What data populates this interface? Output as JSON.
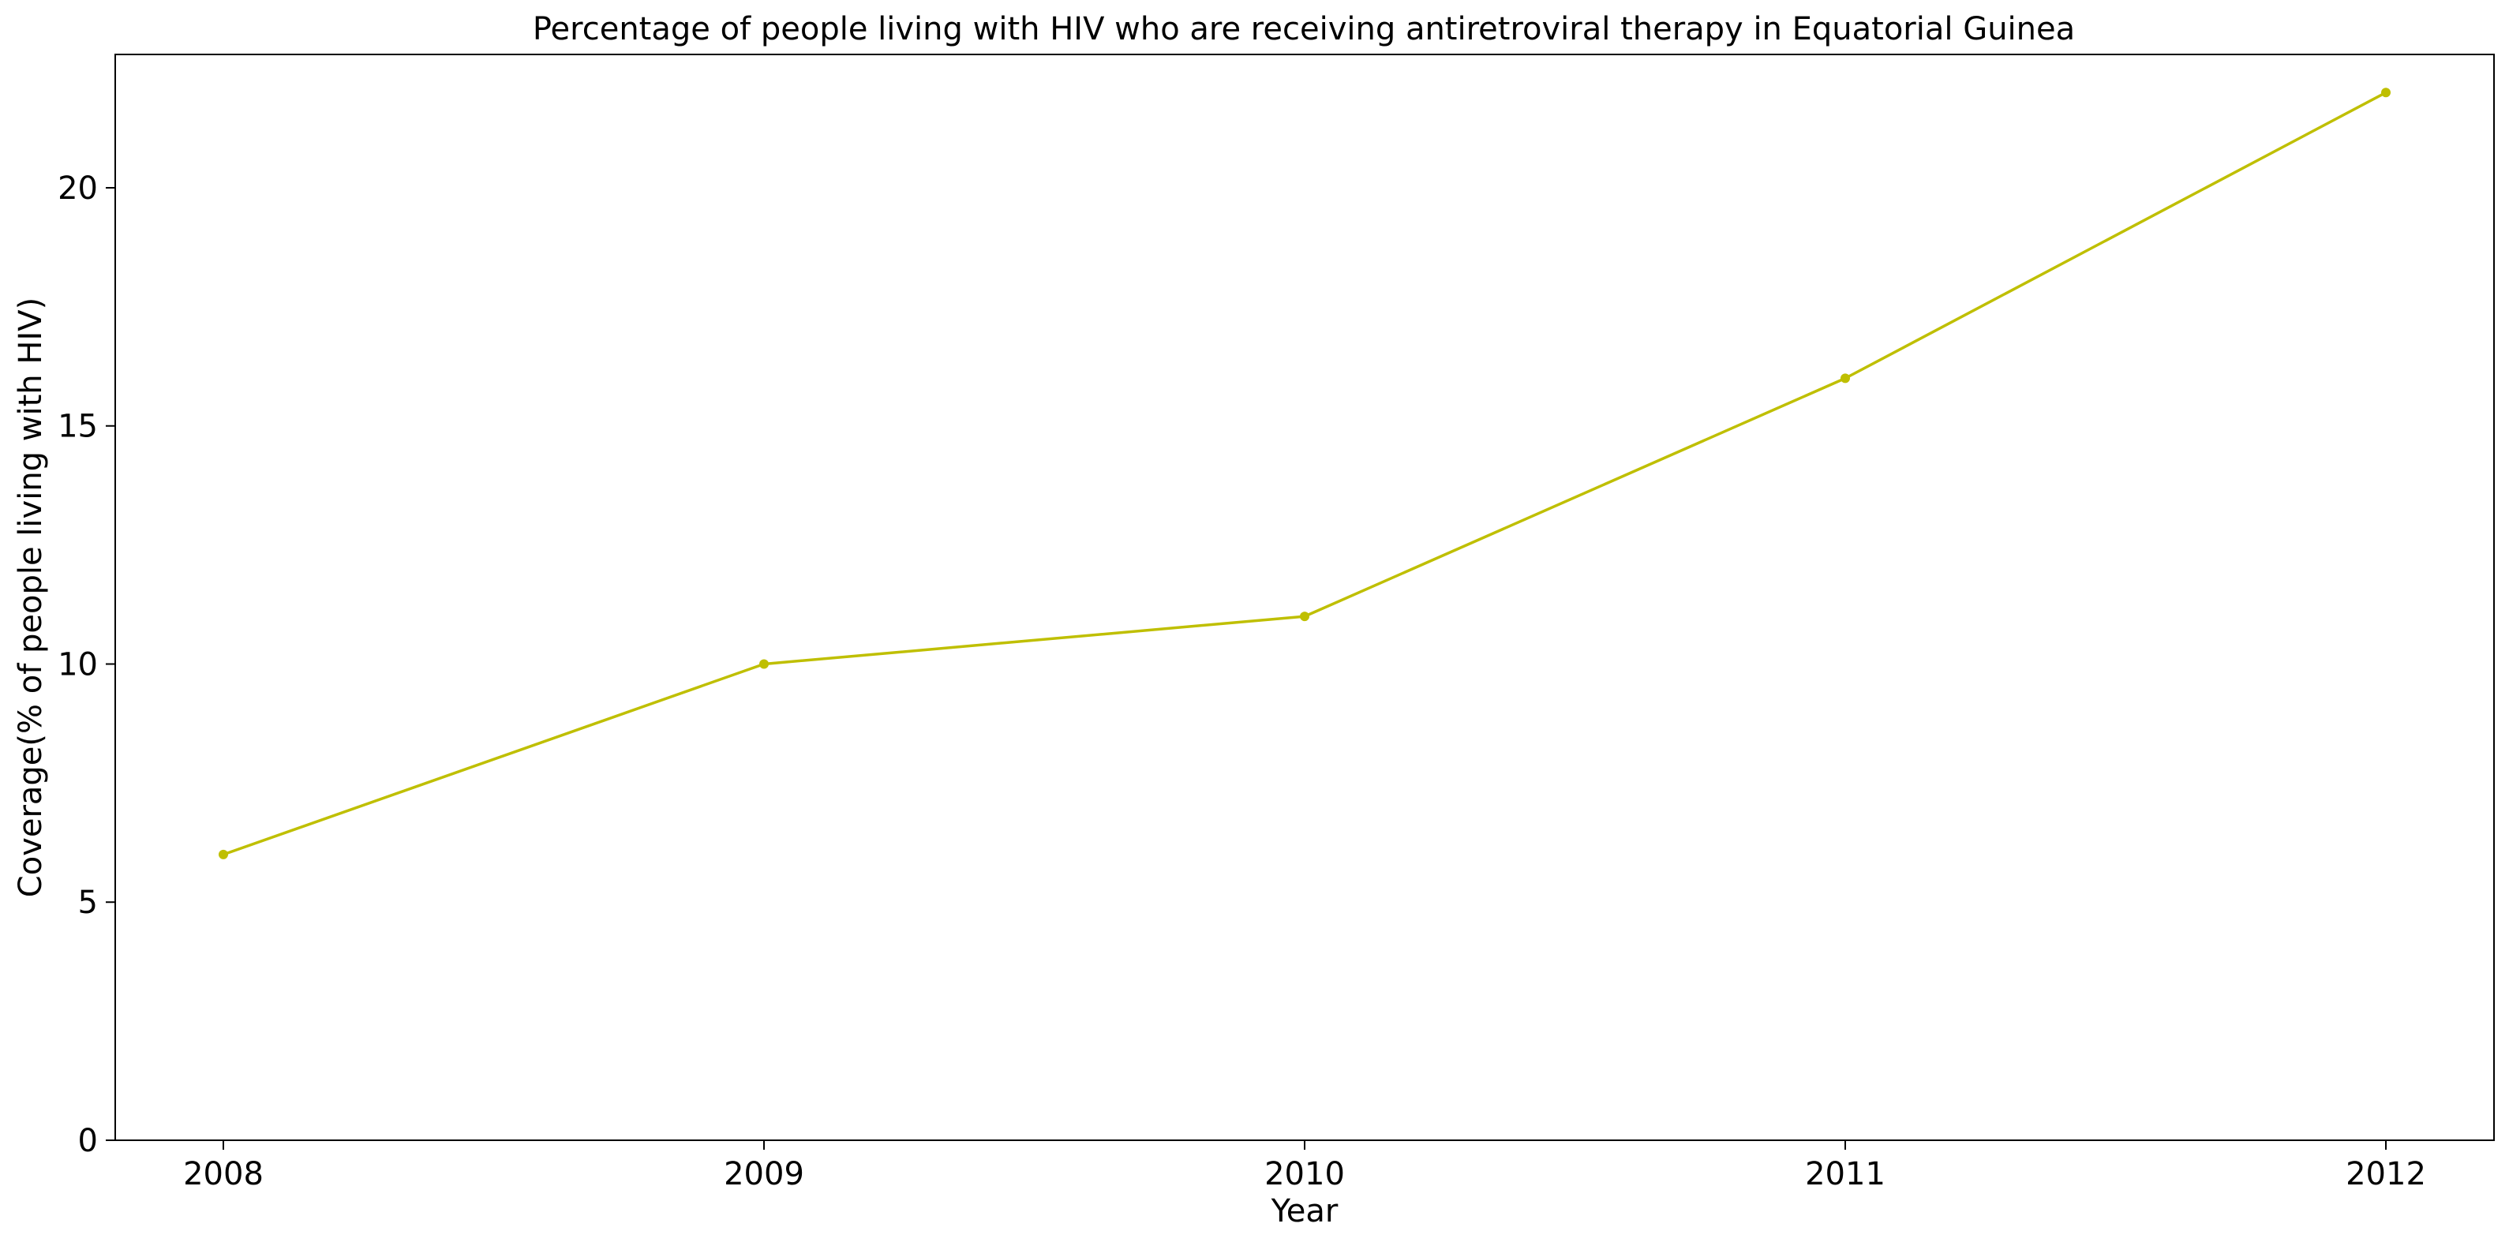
{
  "chart_data": {
    "type": "line",
    "title": "Percentage of people living with HIV who are receiving antiretroviral therapy in Equatorial Guinea",
    "xlabel": "Year",
    "ylabel": "Coverage(% of people living with HIV)",
    "x": [
      "2008",
      "2009",
      "2010",
      "2011",
      "2012"
    ],
    "series": [
      {
        "name": "Coverage",
        "values": [
          6,
          10,
          11,
          16,
          22
        ],
        "color": "#bfbf00"
      }
    ],
    "xlim": [
      2007.8,
      2012.2
    ],
    "ylim": [
      0,
      22.8
    ],
    "yticks": [
      0,
      5,
      10,
      15,
      20
    ],
    "xticks": [
      "2008",
      "2009",
      "2010",
      "2011",
      "2012"
    ],
    "grid": false,
    "legend": false
  }
}
